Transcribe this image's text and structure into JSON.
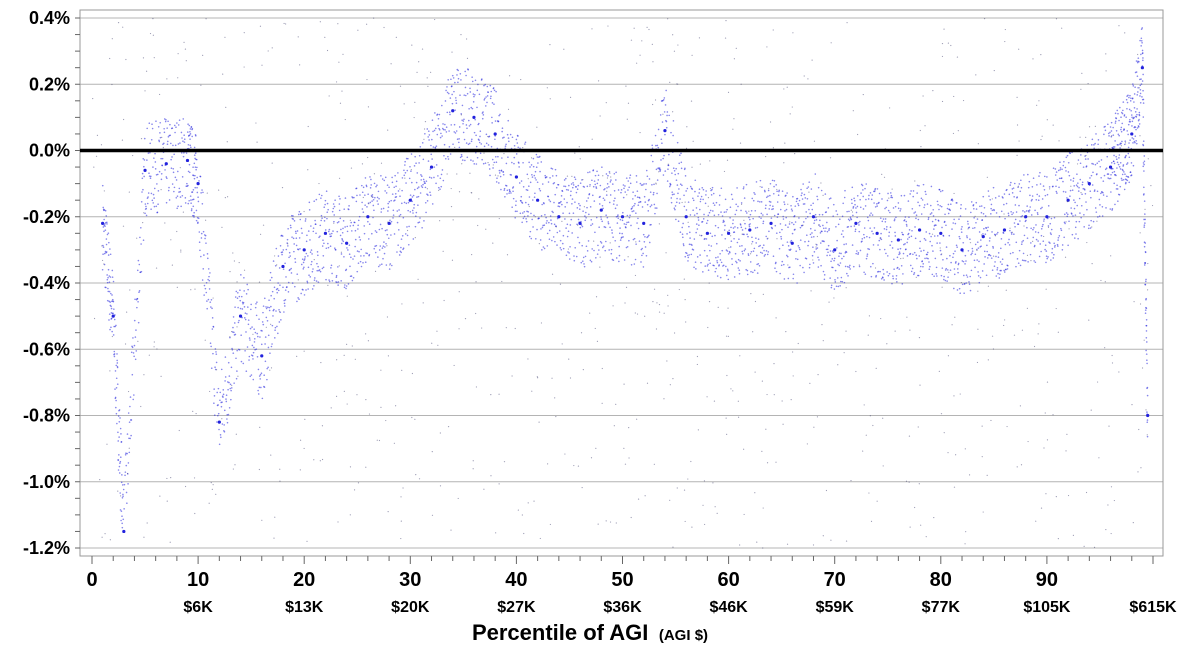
{
  "chart_data": {
    "type": "scatter",
    "title": "",
    "xlabel": "Percentile of AGI",
    "xlabel_unit": "(AGI $)",
    "ylabel": "",
    "xlim": [
      0,
      100
    ],
    "ylim": [
      -1.2,
      0.4
    ],
    "grid": "horizontal",
    "reference_line_y": 0.0,
    "x_ticks": [
      {
        "x": 0,
        "label": "0",
        "sub": ""
      },
      {
        "x": 10,
        "label": "10",
        "sub": "$6K"
      },
      {
        "x": 20,
        "label": "20",
        "sub": "$13K"
      },
      {
        "x": 30,
        "label": "30",
        "sub": "$20K"
      },
      {
        "x": 40,
        "label": "40",
        "sub": "$27K"
      },
      {
        "x": 50,
        "label": "50",
        "sub": "$36K"
      },
      {
        "x": 60,
        "label": "60",
        "sub": "$46K"
      },
      {
        "x": 70,
        "label": "70",
        "sub": "$59K"
      },
      {
        "x": 80,
        "label": "80",
        "sub": "$77K"
      },
      {
        "x": 90,
        "label": "90",
        "sub": "$105K"
      },
      {
        "x": 100,
        "label": "",
        "sub": "$615K"
      }
    ],
    "y_ticks": [
      {
        "y": 0.4,
        "label": "0.4%"
      },
      {
        "y": 0.2,
        "label": "0.2%"
      },
      {
        "y": 0.0,
        "label": "0.0%"
      },
      {
        "y": -0.2,
        "label": "-0.2%"
      },
      {
        "y": -0.4,
        "label": "-0.4%"
      },
      {
        "y": -0.6,
        "label": "-0.6%"
      },
      {
        "y": -0.8,
        "label": "-0.8%"
      },
      {
        "y": -1.0,
        "label": "-1.0%"
      },
      {
        "y": -1.2,
        "label": "-1.2%"
      }
    ],
    "series": [
      {
        "color": "#2222dd",
        "x": [
          1,
          2,
          3,
          5,
          7,
          9,
          10,
          12,
          14,
          16,
          18,
          20,
          22,
          24,
          26,
          28,
          30,
          32,
          34,
          36,
          38,
          40,
          42,
          44,
          46,
          48,
          50,
          52,
          54,
          56,
          58,
          60,
          62,
          64,
          66,
          68,
          70,
          72,
          74,
          76,
          78,
          80,
          82,
          84,
          86,
          88,
          90,
          92,
          94,
          96,
          97,
          98,
          99,
          99.5
        ],
        "y": [
          -0.22,
          -0.5,
          -1.15,
          -0.06,
          -0.04,
          -0.03,
          -0.1,
          -0.82,
          -0.5,
          -0.62,
          -0.35,
          -0.3,
          -0.25,
          -0.28,
          -0.2,
          -0.22,
          -0.15,
          -0.05,
          0.12,
          0.1,
          0.05,
          -0.08,
          -0.15,
          -0.2,
          -0.22,
          -0.18,
          -0.2,
          -0.22,
          0.06,
          -0.2,
          -0.25,
          -0.25,
          -0.24,
          -0.22,
          -0.28,
          -0.2,
          -0.3,
          -0.22,
          -0.25,
          -0.27,
          -0.24,
          -0.25,
          -0.3,
          -0.26,
          -0.24,
          -0.2,
          -0.2,
          -0.15,
          -0.1,
          -0.05,
          0.0,
          0.05,
          0.25,
          -0.8
        ]
      }
    ]
  }
}
